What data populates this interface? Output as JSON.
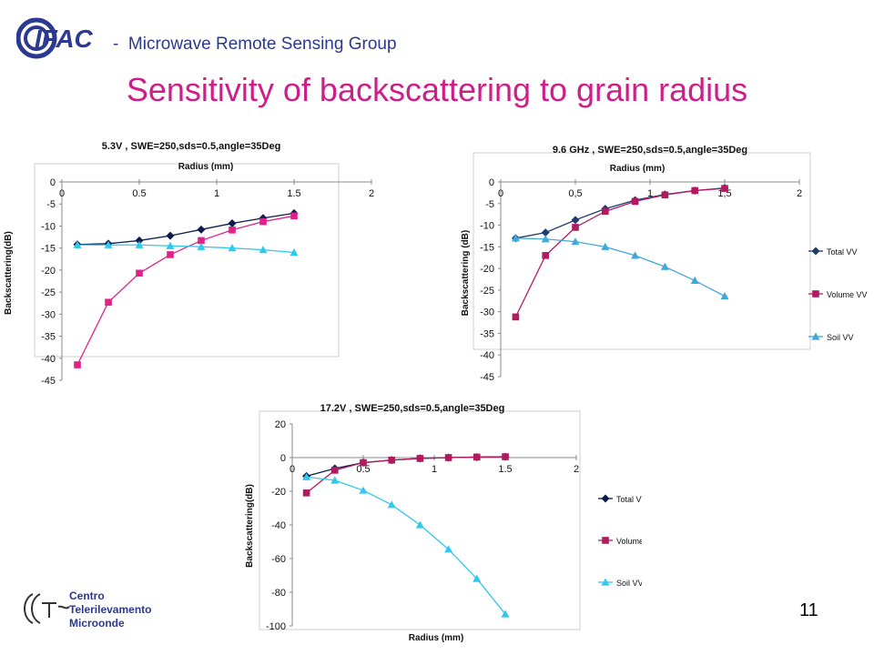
{
  "header": {
    "logo_text": "IFAC",
    "separator": "-",
    "group_name": "Microwave Remote Sensing Group"
  },
  "slide_title": "Sensitivity of backscattering to grain radius",
  "footer": {
    "org_lines": [
      "Centro",
      "Telerilevamento",
      "Microonde"
    ],
    "page_number": "11"
  },
  "colors": {
    "title": "#cc1f8a",
    "group": "#2b3990",
    "total": "#0d1b4f",
    "volume": "#e0218a",
    "soil": "#2fc8ee",
    "volume_9": "#b3195f",
    "soil_9": "#3fa9d8"
  },
  "chart_data": [
    {
      "type": "line",
      "title": "5.3V , SWE=250,sds=0.5,angle=35Deg",
      "xlabel": "Radius (mm)",
      "ylabel": "Backscattering(dB)",
      "x_axis_position": "top",
      "xlim": [
        0,
        2
      ],
      "ylim": [
        -45,
        0
      ],
      "xticks": [
        0,
        0.5,
        1,
        1.5,
        2
      ],
      "xtick_labels": [
        "0",
        "0.5",
        "1",
        "1.5",
        "2"
      ],
      "yticks": [
        0,
        -5,
        -10,
        -15,
        -20,
        -25,
        -30,
        -35,
        -40,
        -45
      ],
      "ytick_labels": [
        "0",
        "-5",
        "-10",
        "-15",
        "-20",
        "-25",
        "-30",
        "-35",
        "-40",
        "-45"
      ],
      "legend": "right",
      "grid": false,
      "x": [
        0.1,
        0.3,
        0.5,
        0.7,
        0.9,
        1.1,
        1.3,
        1.5
      ],
      "series": [
        {
          "name": "Total VV",
          "marker": "diamond",
          "color": "#0d1b4f",
          "values": [
            -14.2,
            -14.0,
            -13.3,
            -12.2,
            -10.8,
            -9.4,
            -8.2,
            -7.1
          ]
        },
        {
          "name": "Volume VV",
          "marker": "square",
          "color": "#e0218a",
          "values": [
            -41.5,
            -27.3,
            -20.7,
            -16.5,
            -13.3,
            -10.9,
            -9.0,
            -7.7
          ]
        },
        {
          "name": "Soil VV",
          "marker": "triangle",
          "color": "#2fc8ee",
          "values": [
            -14.3,
            -14.3,
            -14.3,
            -14.5,
            -14.7,
            -15.0,
            -15.4,
            -16.0
          ]
        }
      ]
    },
    {
      "type": "line",
      "title": "9.6 GHz , SWE=250,sds=0.5,angle=35Deg",
      "xlabel": "Radius (mm)",
      "ylabel": "Backscattering (dB)",
      "x_axis_position": "top",
      "xlim": [
        0,
        2
      ],
      "ylim": [
        -45,
        0
      ],
      "xticks": [
        0,
        0.5,
        1,
        1.5,
        2
      ],
      "xtick_labels": [
        "0",
        "0,5",
        "1",
        "1,5",
        "2"
      ],
      "yticks": [
        0,
        -5,
        -10,
        -15,
        -20,
        -25,
        -30,
        -35,
        -40,
        -45
      ],
      "ytick_labels": [
        "0",
        "-5",
        "-10",
        "-15",
        "-20",
        "-25",
        "-30",
        "-35",
        "-40",
        "-45"
      ],
      "legend": "right",
      "grid": false,
      "x": [
        0.1,
        0.3,
        0.5,
        0.7,
        0.9,
        1.1,
        1.3,
        1.5
      ],
      "series": [
        {
          "name": "Total VV",
          "marker": "diamond",
          "color": "#1f3b6f",
          "values": [
            -13.0,
            -11.7,
            -8.8,
            -6.2,
            -4.2,
            -2.9,
            -2.0,
            -1.4
          ]
        },
        {
          "name": "Volume VV",
          "marker": "square",
          "color": "#b3195f",
          "values": [
            -31.2,
            -17.0,
            -10.5,
            -6.8,
            -4.5,
            -3.0,
            -2.0,
            -1.5
          ]
        },
        {
          "name": "Soil VV",
          "marker": "triangle",
          "color": "#3fa9d8",
          "values": [
            -13.0,
            -13.2,
            -13.8,
            -15.0,
            -17.0,
            -19.6,
            -22.8,
            -26.4
          ]
        }
      ]
    },
    {
      "type": "line",
      "title": "17.2V , SWE=250,sds=0.5,angle=35Deg",
      "xlabel": "Radius (mm)",
      "ylabel": "Backscattering(dB)",
      "x_axis_position": "zero",
      "xlim": [
        0,
        2
      ],
      "ylim": [
        -100,
        20
      ],
      "xticks": [
        0,
        0.5,
        1,
        1.5,
        2
      ],
      "xtick_labels": [
        "0",
        "0.5",
        "1",
        "1.5",
        "2"
      ],
      "yticks": [
        20,
        0,
        -20,
        -40,
        -60,
        -80,
        -100
      ],
      "ytick_labels": [
        "20",
        "0",
        "-20",
        "-40",
        "-60",
        "-80",
        "-100"
      ],
      "legend": "right",
      "grid": false,
      "x": [
        0.1,
        0.3,
        0.5,
        0.7,
        0.9,
        1.1,
        1.3,
        1.5
      ],
      "series": [
        {
          "name": "Total VV",
          "marker": "diamond",
          "color": "#0d1b4f",
          "values": [
            -11.0,
            -6.5,
            -3.0,
            -1.5,
            -0.5,
            0.0,
            0.3,
            0.5
          ]
        },
        {
          "name": "Volume VV",
          "marker": "square",
          "color": "#b3195f",
          "values": [
            -21.0,
            -7.5,
            -3.0,
            -1.5,
            -0.5,
            0.0,
            0.3,
            0.5
          ]
        },
        {
          "name": "Soil VV",
          "marker": "triangle",
          "color": "#2fc8ee",
          "values": [
            -11.5,
            -13.5,
            -19.5,
            -28.0,
            -40.0,
            -54.5,
            -72.0,
            -93.0
          ]
        }
      ]
    }
  ]
}
